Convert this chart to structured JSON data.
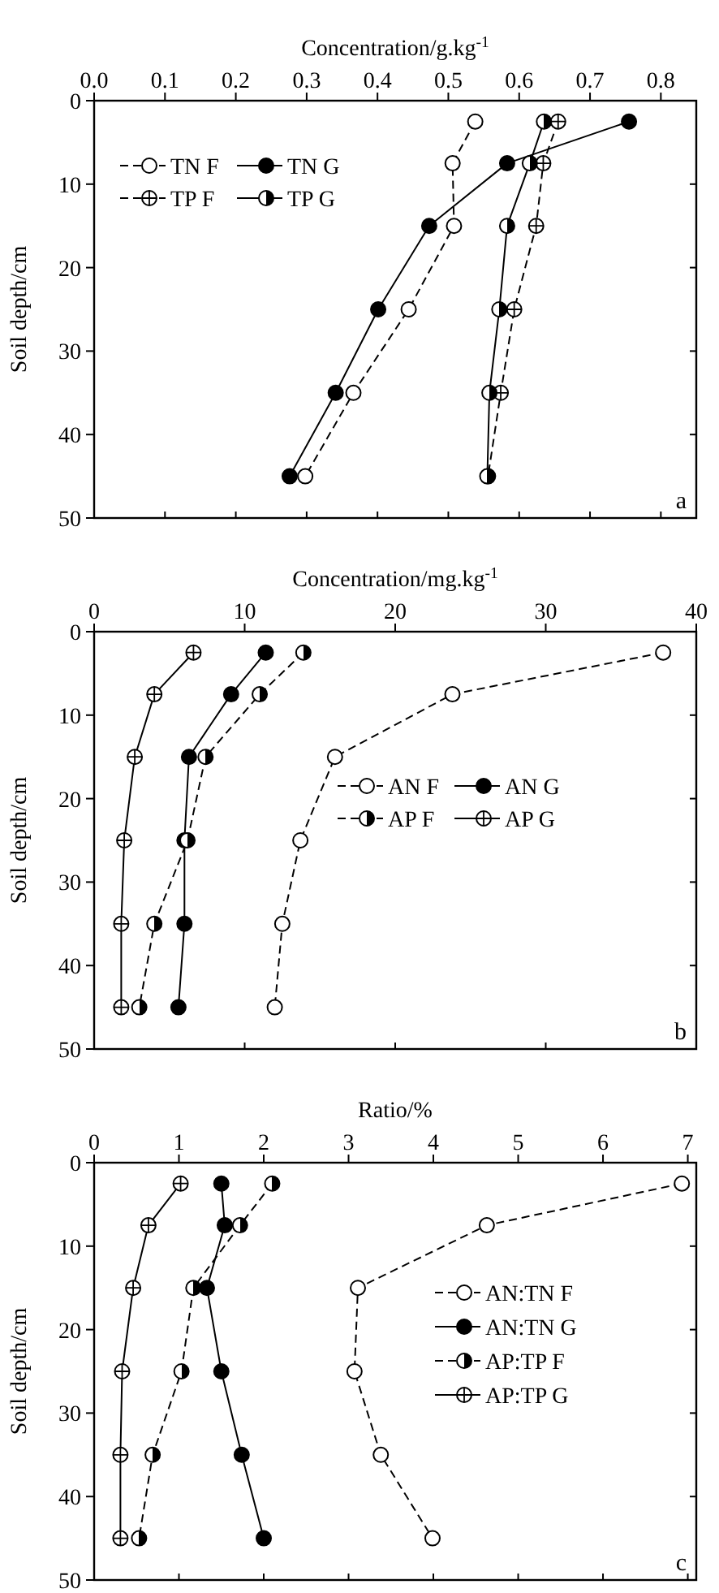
{
  "chart_data": [
    {
      "type": "line",
      "xlabel": "Concentration/g.kg$^{-1}$",
      "ylabel": "Soil depth/cm",
      "xlim": [
        0,
        0.85
      ],
      "xticks": [
        {
          "value": 0,
          "label": "0.0"
        },
        0.1,
        0.2,
        0.3,
        0.4,
        0.5,
        0.6,
        0.7,
        0.8
      ],
      "ylim": [
        50,
        0
      ],
      "yticks": [
        0,
        10,
        20,
        30,
        40,
        50
      ],
      "legend": "top left",
      "annotations": [
        "a"
      ],
      "series": [
        {
          "name": "TN F",
          "color": "#000000",
          "marker": "circle-open",
          "line_style": "dashed",
          "x": [
            0.538,
            0.506,
            0.508,
            0.444,
            0.366,
            0.298
          ],
          "values": [
            2.5,
            7.5,
            15,
            25,
            35,
            45
          ]
        },
        {
          "name": "TN G",
          "color": "#000000",
          "marker": "circle",
          "line_style": "solid",
          "x": [
            0.755,
            0.583,
            0.473,
            0.401,
            0.341,
            0.276
          ],
          "values": [
            2.5,
            7.5,
            15,
            25,
            35,
            45
          ]
        },
        {
          "name": "TP F",
          "color": "#000000",
          "marker": "circle-cross",
          "line_style": "dashed",
          "x": [
            0.655,
            0.634,
            0.624,
            0.593,
            0.574,
            0.556
          ],
          "values": [
            2.5,
            7.5,
            15,
            25,
            35,
            45
          ]
        },
        {
          "name": "TP G",
          "color": "#000000",
          "marker": "circle-half",
          "line_style": "solid",
          "x": [
            0.635,
            0.615,
            0.583,
            0.572,
            0.558,
            0.555
          ],
          "values": [
            2.5,
            7.5,
            15,
            25,
            35,
            45
          ]
        }
      ]
    },
    {
      "type": "line",
      "xlabel": "Concentration/mg.kg$^{-1}$",
      "ylabel": "Soil depth/cm",
      "xlim": [
        0,
        40
      ],
      "xticks": [
        0,
        10,
        20,
        30,
        40
      ],
      "ylim": [
        50,
        0
      ],
      "yticks": [
        0,
        10,
        20,
        30,
        40,
        50
      ],
      "legend": "center",
      "annotations": [
        "b"
      ],
      "series": [
        {
          "name": "AN F",
          "color": "#000000",
          "marker": "circle-open",
          "line_style": "dashed",
          "x": [
            37.8,
            23.8,
            16.0,
            13.7,
            12.5,
            12.0
          ],
          "values": [
            2.5,
            7.5,
            15,
            25,
            35,
            45
          ]
        },
        {
          "name": "AN G",
          "color": "#000000",
          "marker": "circle",
          "line_style": "solid",
          "x": [
            11.4,
            9.1,
            6.3,
            6.0,
            6.0,
            5.6
          ],
          "values": [
            2.5,
            7.5,
            15,
            25,
            35,
            45
          ]
        },
        {
          "name": "AP F",
          "color": "#000000",
          "marker": "circle-half",
          "line_style": "dashed",
          "x": [
            13.9,
            11.0,
            7.4,
            6.2,
            4.0,
            3.0
          ],
          "values": [
            2.5,
            7.5,
            15,
            25,
            35,
            45
          ]
        },
        {
          "name": "AP G",
          "color": "#000000",
          "marker": "circle-cross",
          "line_style": "solid",
          "x": [
            6.6,
            4.0,
            2.7,
            2.0,
            1.8,
            1.8
          ],
          "values": [
            2.5,
            7.5,
            15,
            25,
            35,
            45
          ]
        }
      ]
    },
    {
      "type": "line",
      "xlabel": "Ratio/%",
      "ylabel": "Soil depth/cm",
      "xlim": [
        0,
        7.1
      ],
      "xticks": [
        0,
        1,
        2,
        3,
        4,
        5,
        6,
        7
      ],
      "ylim": [
        50,
        0
      ],
      "yticks": [
        0,
        10,
        20,
        30,
        40,
        50
      ],
      "legend": "right",
      "annotations": [
        "c"
      ],
      "series": [
        {
          "name": "AN:TN F",
          "color": "#000000",
          "marker": "circle-open",
          "line_style": "dashed",
          "x": [
            6.93,
            4.63,
            3.11,
            3.07,
            3.38,
            3.99
          ],
          "values": [
            2.5,
            7.5,
            15,
            25,
            35,
            45
          ]
        },
        {
          "name": "AN:TN G",
          "color": "#000000",
          "marker": "circle",
          "line_style": "solid",
          "x": [
            1.5,
            1.54,
            1.33,
            1.5,
            1.74,
            2.0
          ],
          "values": [
            2.5,
            7.5,
            15,
            25,
            35,
            45
          ]
        },
        {
          "name": "AP:TP F",
          "color": "#000000",
          "marker": "circle-half",
          "line_style": "dashed",
          "x": [
            2.1,
            1.72,
            1.17,
            1.03,
            0.69,
            0.53
          ],
          "values": [
            2.5,
            7.5,
            15,
            25,
            35,
            45
          ]
        },
        {
          "name": "AP:TP G",
          "color": "#000000",
          "marker": "circle-cross",
          "line_style": "solid",
          "x": [
            1.02,
            0.64,
            0.46,
            0.33,
            0.31,
            0.31
          ],
          "values": [
            2.5,
            7.5,
            15,
            25,
            35,
            45
          ]
        }
      ]
    }
  ]
}
